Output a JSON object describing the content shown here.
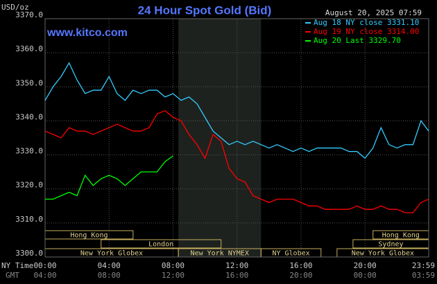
{
  "chart_data": {
    "type": "line",
    "title": "24 Hour Spot Gold (Bid)",
    "timestamp": "August 20, 2025 07:59",
    "watermark": "www.kitco.com",
    "ylabel": "USD/oz",
    "xlabel": "NY Time",
    "x2label": "GMT",
    "xlim": [
      0,
      23.98
    ],
    "ylim": [
      3300,
      3370
    ],
    "grid": true,
    "yticks": [
      {
        "value": 3300,
        "label": "3300.0"
      },
      {
        "value": 3310,
        "label": "3310.0"
      },
      {
        "value": 3320,
        "label": "3320.0"
      },
      {
        "value": 3330,
        "label": "3330.0"
      },
      {
        "value": 3340,
        "label": "3340.0"
      },
      {
        "value": 3350,
        "label": "3350.0"
      },
      {
        "value": 3360,
        "label": "3360.0"
      },
      {
        "value": 3370,
        "label": "3370.0"
      }
    ],
    "xticks": [
      {
        "value": 0,
        "label": "00:00"
      },
      {
        "value": 4,
        "label": "04:00"
      },
      {
        "value": 8,
        "label": "08:00"
      },
      {
        "value": 12,
        "label": "12:00"
      },
      {
        "value": 16,
        "label": "16:00"
      },
      {
        "value": 20,
        "label": "20:00"
      },
      {
        "value": 23.98,
        "label": "23:59"
      }
    ],
    "x2ticks": [
      {
        "value": 0,
        "label": "04:00"
      },
      {
        "value": 4,
        "label": "08:00"
      },
      {
        "value": 8,
        "label": "12:00"
      },
      {
        "value": 12,
        "label": "16:00"
      },
      {
        "value": 16,
        "label": "20:00"
      },
      {
        "value": 20,
        "label": "00:00"
      },
      {
        "value": 23.98,
        "label": "03:59"
      }
    ],
    "session_rows": [
      [
        {
          "name": "Hong Kong",
          "start": 0,
          "end": 5.5
        },
        {
          "name": "Hong Kong",
          "start": 20.5,
          "end": 23.98
        }
      ],
      [
        {
          "name": "London",
          "start": 3.5,
          "end": 11
        },
        {
          "name": "Sydney",
          "start": 19.25,
          "end": 23.98
        }
      ],
      [
        {
          "name": "New York Globex",
          "start": 0,
          "end": 8.33
        },
        {
          "name": "New York NYMEX",
          "start": 8.33,
          "end": 13.5
        },
        {
          "name": "NY Globex",
          "start": 13.5,
          "end": 17.25
        },
        {
          "name": "New York Globex",
          "start": 18.25,
          "end": 23.98
        }
      ]
    ],
    "x": [
      0,
      0.5,
      1,
      1.5,
      2,
      2.5,
      3,
      3.5,
      4,
      4.5,
      5,
      5.5,
      6,
      6.5,
      7,
      7.5,
      8,
      8.5,
      9,
      9.5,
      10,
      10.5,
      11,
      11.5,
      12,
      12.5,
      13,
      13.5,
      14,
      14.5,
      15,
      15.5,
      16,
      16.5,
      17,
      17.5,
      18,
      18.5,
      19,
      19.5,
      20,
      20.5,
      21,
      21.5,
      22,
      22.5,
      23,
      23.5,
      23.98
    ],
    "series": [
      {
        "name": "Aug 18 NY close 3331.10",
        "color": "#33ccff",
        "values": [
          3346,
          3350,
          3353,
          3357,
          3352,
          3348,
          3349,
          3349,
          3353,
          3348,
          3346,
          3349,
          3348,
          3349,
          3349,
          3347,
          3348,
          3346,
          3347,
          3345,
          3341,
          3337,
          3335,
          3333,
          3334,
          3333,
          3334,
          3333,
          3332,
          3333,
          3332,
          3331,
          3332,
          3331,
          3332,
          3332,
          3332,
          3332,
          3331,
          3331,
          3329,
          3332,
          3338,
          3333,
          3332,
          3333,
          3333,
          3340,
          3337
        ]
      },
      {
        "name": "Aug 19 NY close 3314.00",
        "color": "#ff0000",
        "values": [
          3337,
          3336,
          3335,
          3338,
          3337,
          3337,
          3336,
          3337,
          3338,
          3339,
          3338,
          3337,
          3337,
          3338,
          3342,
          3343,
          3341,
          3340,
          3336,
          3333,
          3329,
          3336,
          3334,
          3326,
          3323,
          3322,
          3318,
          3317,
          3316,
          3317,
          3317,
          3317,
          3316,
          3315,
          3315,
          3314,
          3314,
          3314,
          3314,
          3315,
          3314,
          3314,
          3315,
          3314,
          3314,
          3313,
          3313,
          3316,
          3317
        ]
      },
      {
        "name": "Aug 20 Last 3329.70",
        "color": "#00ff00",
        "values": [
          3317,
          3317,
          3318,
          3319,
          3318,
          3324,
          3321,
          3323,
          3324,
          3323,
          3321,
          3323,
          3325,
          3325,
          3325,
          3328,
          3329.7,
          null,
          null,
          null,
          null,
          null,
          null,
          null,
          null,
          null,
          null,
          null,
          null,
          null,
          null,
          null,
          null,
          null,
          null,
          null,
          null,
          null,
          null,
          null,
          null,
          null,
          null,
          null,
          null,
          null,
          null,
          null,
          null
        ]
      }
    ]
  }
}
